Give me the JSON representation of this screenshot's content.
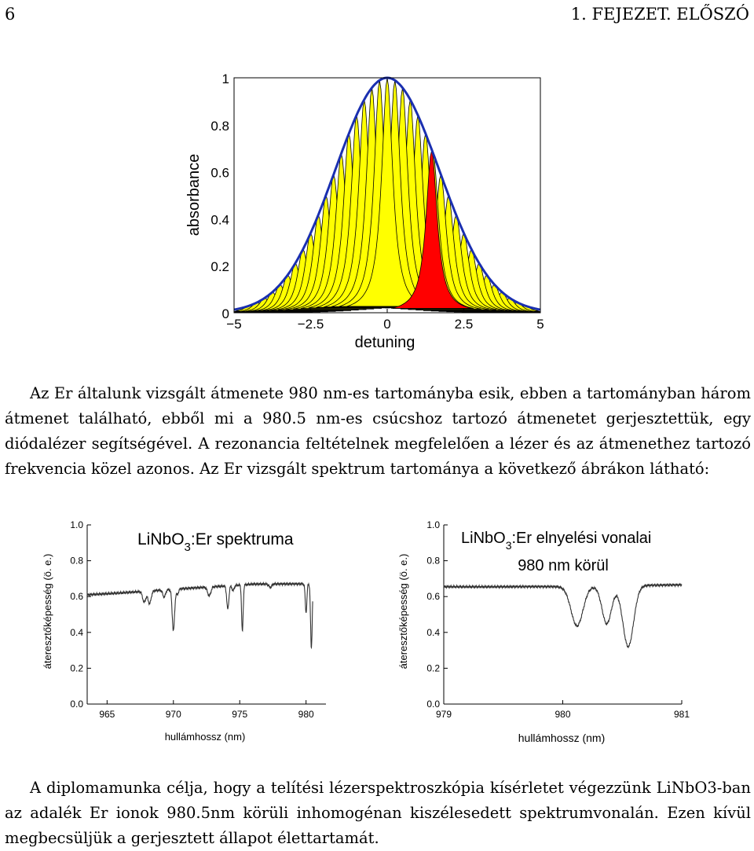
{
  "header": {
    "page_number": "6",
    "chapter": "1. FEJEZET.  ELŐSZÓ"
  },
  "paragraph1": "Az Er általunk vizsgált átmenete 980 nm-es tartományba esik, ebben a tartományban három átmenet található, ebből mi a 980.5 nm-es csúcshoz tartozó átmenetet gerjesztettük, egy diódalézer segítségével. A rezonancia feltételnek megfelelően a lézer és az átmenethez tartozó frekvencia közel azonos. Az Er vizsgált spektrum tartománya a következő ábrákon látható:",
  "paragraph2": "A diplomamunka célja, hogy a telítési lézerspektroszkópia kísérletet végezzünk LiNbO3-ban az adalék Er ionok 980.5nm körüli inhomogénan kiszélesedett spektrumvonalán. Ezen kívül megbecsüljük a gerjesztett állapot élettartamát.",
  "chart_data": [
    {
      "type": "area",
      "title": "",
      "xlabel": "detuning",
      "ylabel": "absorbance",
      "xlim": [
        -5,
        5
      ],
      "ylim": [
        0,
        1
      ],
      "xticks": [
        "−5",
        "−2.5",
        "0",
        "2.5",
        "5"
      ],
      "yticks": [
        "0",
        "0.2",
        "0.4",
        "0.6",
        "0.8",
        "1"
      ],
      "envelope": {
        "shape": "gaussian",
        "center": 0,
        "sigma": 1.7,
        "peak": 1,
        "color": "#1a2fb0"
      },
      "homogeneous_lines": {
        "count": 41,
        "x_from": -5,
        "x_to": 5,
        "half_width": 0.22,
        "fill": "#ffff00",
        "stroke": "#000000"
      },
      "highlighted_line": {
        "center": 1.45,
        "half_width": 0.22,
        "peak": 0.69,
        "fill": "#ff0000"
      }
    },
    {
      "type": "line",
      "title": "LiNbO",
      "title_sub": "3",
      "title_tail": ":Er spektruma",
      "xlabel": "hullámhossz (nm)",
      "ylabel": "áteresztőképesség (ö. e.)",
      "xlim": [
        963.5,
        981.5
      ],
      "ylim": [
        0,
        1.0
      ],
      "xticks": [
        "965",
        "970",
        "975",
        "980"
      ],
      "yticks": [
        "0.0",
        "0.2",
        "0.4",
        "0.6",
        "0.8",
        "1.0"
      ],
      "baseline": {
        "x": [
          963.5,
          968,
          972,
          976,
          980.5
        ],
        "y": [
          0.61,
          0.63,
          0.65,
          0.67,
          0.67
        ]
      },
      "dips": [
        {
          "x": 967.8,
          "depth": 0.06,
          "width": 0.12
        },
        {
          "x": 968.2,
          "depth": 0.07,
          "width": 0.12
        },
        {
          "x": 969.3,
          "depth": 0.04,
          "width": 0.1
        },
        {
          "x": 970.0,
          "depth": 0.23,
          "width": 0.09
        },
        {
          "x": 970.3,
          "depth": 0.03,
          "width": 0.08
        },
        {
          "x": 972.7,
          "depth": 0.05,
          "width": 0.12
        },
        {
          "x": 974.1,
          "depth": 0.13,
          "width": 0.08
        },
        {
          "x": 974.5,
          "depth": 0.03,
          "width": 0.08
        },
        {
          "x": 975.2,
          "depth": 0.26,
          "width": 0.06
        },
        {
          "x": 977.3,
          "depth": 0.02,
          "width": 0.1
        },
        {
          "x": 980.0,
          "depth": 0.16,
          "width": 0.06
        },
        {
          "x": 980.4,
          "depth": 0.36,
          "width": 0.06
        },
        {
          "x": 980.6,
          "depth": 0.04,
          "width": 0.05
        }
      ]
    },
    {
      "type": "line",
      "title": "LiNbO",
      "title_sub": "3",
      "title_tail": ":Er elnyelési vonalai",
      "title2": "980 nm körül",
      "xlabel": "hullámhossz (nm)",
      "ylabel": "áteresztőképesség (ö. e.)",
      "xlim": [
        979,
        981
      ],
      "ylim": [
        0,
        1.0
      ],
      "xticks": [
        "979",
        "980",
        "981"
      ],
      "yticks": [
        "0.0",
        "0.2",
        "0.4",
        "0.6",
        "0.8",
        "1.0"
      ],
      "baseline": {
        "x": [
          979,
          980,
          981
        ],
        "y": [
          0.655,
          0.655,
          0.665
        ]
      },
      "dips": [
        {
          "x": 980.12,
          "depth": 0.22,
          "width": 0.05
        },
        {
          "x": 980.37,
          "depth": 0.21,
          "width": 0.04
        },
        {
          "x": 980.55,
          "depth": 0.34,
          "width": 0.045
        }
      ]
    }
  ]
}
